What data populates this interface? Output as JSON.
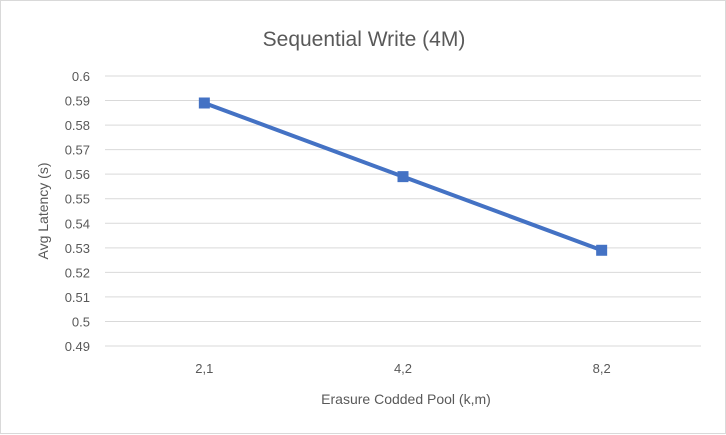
{
  "chart_data": {
    "type": "line",
    "title": "Sequential Write (4M)",
    "xlabel": "Erasure Codded Pool (k,m)",
    "ylabel": "Avg Latency (s)",
    "categories": [
      "2,1",
      "4,2",
      "8,2"
    ],
    "series": [
      {
        "values": [
          0.589,
          0.559,
          0.529
        ],
        "color": "#4472c4",
        "marker": "square"
      }
    ],
    "ylim": [
      0.49,
      0.6
    ],
    "yticks": [
      "0.6",
      "0.59",
      "0.58",
      "0.57",
      "0.56",
      "0.55",
      "0.54",
      "0.53",
      "0.52",
      "0.51",
      "0.5",
      "0.49"
    ],
    "grid": true,
    "gridColor": "#d9d9d9",
    "legend": "none"
  }
}
